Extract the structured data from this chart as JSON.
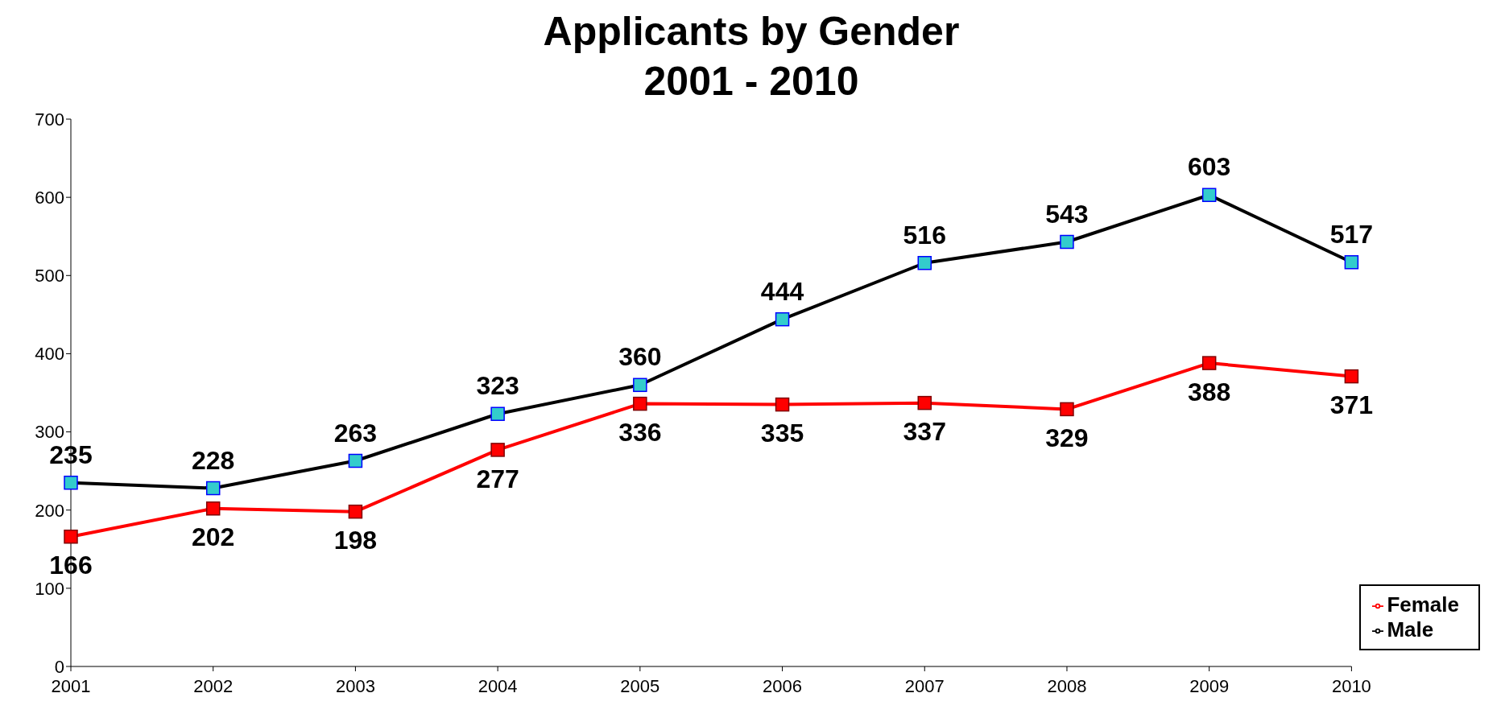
{
  "chart_data": {
    "type": "line",
    "title": "Applicants by Gender\n2001 - 2010",
    "categories": [
      "2001",
      "2002",
      "2003",
      "2004",
      "2005",
      "2006",
      "2007",
      "2008",
      "2009",
      "2010"
    ],
    "series": [
      {
        "name": "Male",
        "color": "#000000",
        "values": [
          235,
          228,
          263,
          323,
          360,
          444,
          516,
          543,
          603,
          517
        ]
      },
      {
        "name": "Female",
        "color": "#ff0000",
        "values": [
          166,
          202,
          198,
          277,
          336,
          335,
          337,
          329,
          388,
          371
        ]
      }
    ],
    "ylim": [
      0,
      700
    ],
    "yticks": [
      0,
      100,
      200,
      300,
      400,
      500,
      600,
      700
    ],
    "grid": false,
    "legend": "bottom right",
    "marker": "square",
    "data_labels": true
  }
}
